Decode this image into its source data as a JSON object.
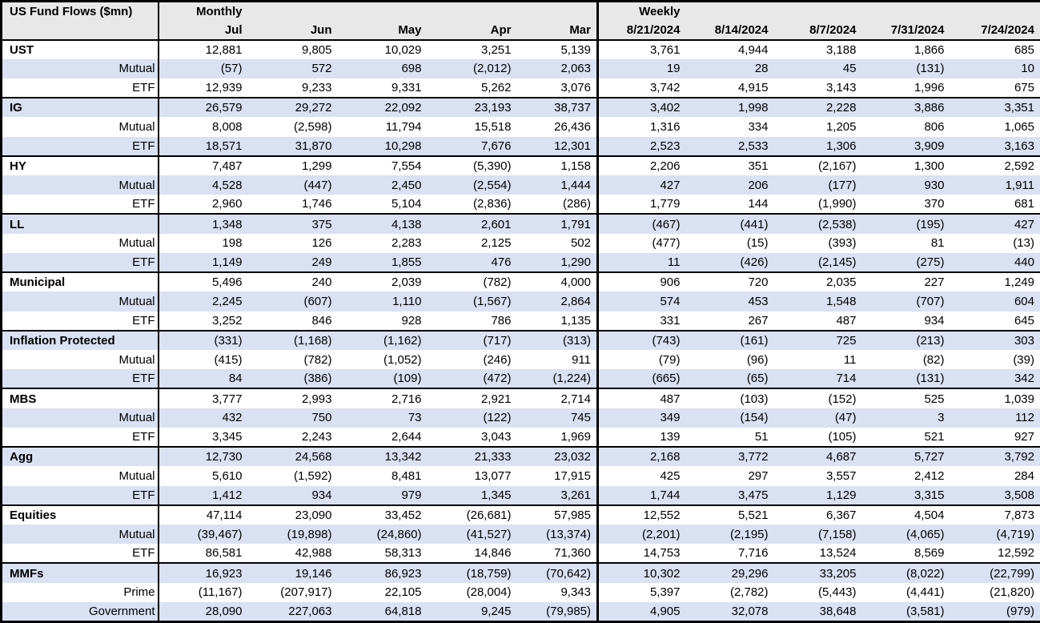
{
  "colors": {
    "alt_row_bg": "#d9e1f2",
    "header_bg": "#e8e8e8",
    "border": "#000000"
  },
  "chart_data": {
    "type": "table",
    "title": "US Fund Flows ($mn)",
    "section_headers": {
      "monthly": "Monthly",
      "weekly": "Weekly"
    },
    "columns": {
      "monthly": [
        "Jul",
        "Jun",
        "May",
        "Apr",
        "Mar"
      ],
      "weekly": [
        "8/21/2024",
        "8/14/2024",
        "8/7/2024",
        "7/31/2024",
        "7/24/2024"
      ]
    },
    "groups": [
      {
        "label": "UST",
        "monthly": [
          "12,881",
          "9,805",
          "10,029",
          "3,251",
          "5,139"
        ],
        "weekly": [
          "3,761",
          "4,944",
          "3,188",
          "1,866",
          "685"
        ],
        "subrows": [
          {
            "label": "Mutual",
            "monthly": [
              "(57)",
              "572",
              "698",
              "(2,012)",
              "2,063"
            ],
            "weekly": [
              "19",
              "28",
              "45",
              "(131)",
              "10"
            ]
          },
          {
            "label": "ETF",
            "monthly": [
              "12,939",
              "9,233",
              "9,331",
              "5,262",
              "3,076"
            ],
            "weekly": [
              "3,742",
              "4,915",
              "3,143",
              "1,996",
              "675"
            ]
          }
        ]
      },
      {
        "label": "IG",
        "monthly": [
          "26,579",
          "29,272",
          "22,092",
          "23,193",
          "38,737"
        ],
        "weekly": [
          "3,402",
          "1,998",
          "2,228",
          "3,886",
          "3,351"
        ],
        "subrows": [
          {
            "label": "Mutual",
            "monthly": [
              "8,008",
              "(2,598)",
              "11,794",
              "15,518",
              "26,436"
            ],
            "weekly": [
              "1,316",
              "334",
              "1,205",
              "806",
              "1,065"
            ]
          },
          {
            "label": "ETF",
            "monthly": [
              "18,571",
              "31,870",
              "10,298",
              "7,676",
              "12,301"
            ],
            "weekly": [
              "2,523",
              "2,533",
              "1,306",
              "3,909",
              "3,163"
            ]
          }
        ]
      },
      {
        "label": "HY",
        "monthly": [
          "7,487",
          "1,299",
          "7,554",
          "(5,390)",
          "1,158"
        ],
        "weekly": [
          "2,206",
          "351",
          "(2,167)",
          "1,300",
          "2,592"
        ],
        "subrows": [
          {
            "label": "Mutual",
            "monthly": [
              "4,528",
              "(447)",
              "2,450",
              "(2,554)",
              "1,444"
            ],
            "weekly": [
              "427",
              "206",
              "(177)",
              "930",
              "1,911"
            ]
          },
          {
            "label": "ETF",
            "monthly": [
              "2,960",
              "1,746",
              "5,104",
              "(2,836)",
              "(286)"
            ],
            "weekly": [
              "1,779",
              "144",
              "(1,990)",
              "370",
              "681"
            ]
          }
        ]
      },
      {
        "label": "LL",
        "monthly": [
          "1,348",
          "375",
          "4,138",
          "2,601",
          "1,791"
        ],
        "weekly": [
          "(467)",
          "(441)",
          "(2,538)",
          "(195)",
          "427"
        ],
        "subrows": [
          {
            "label": "Mutual",
            "monthly": [
              "198",
              "126",
              "2,283",
              "2,125",
              "502"
            ],
            "weekly": [
              "(477)",
              "(15)",
              "(393)",
              "81",
              "(13)"
            ]
          },
          {
            "label": "ETF",
            "monthly": [
              "1,149",
              "249",
              "1,855",
              "476",
              "1,290"
            ],
            "weekly": [
              "11",
              "(426)",
              "(2,145)",
              "(275)",
              "440"
            ]
          }
        ]
      },
      {
        "label": "Municipal",
        "monthly": [
          "5,496",
          "240",
          "2,039",
          "(782)",
          "4,000"
        ],
        "weekly": [
          "906",
          "720",
          "2,035",
          "227",
          "1,249"
        ],
        "subrows": [
          {
            "label": "Mutual",
            "monthly": [
              "2,245",
              "(607)",
              "1,110",
              "(1,567)",
              "2,864"
            ],
            "weekly": [
              "574",
              "453",
              "1,548",
              "(707)",
              "604"
            ]
          },
          {
            "label": "ETF",
            "monthly": [
              "3,252",
              "846",
              "928",
              "786",
              "1,135"
            ],
            "weekly": [
              "331",
              "267",
              "487",
              "934",
              "645"
            ]
          }
        ]
      },
      {
        "label": "Inflation Protected",
        "monthly": [
          "(331)",
          "(1,168)",
          "(1,162)",
          "(717)",
          "(313)"
        ],
        "weekly": [
          "(743)",
          "(161)",
          "725",
          "(213)",
          "303"
        ],
        "subrows": [
          {
            "label": "Mutual",
            "monthly": [
              "(415)",
              "(782)",
              "(1,052)",
              "(246)",
              "911"
            ],
            "weekly": [
              "(79)",
              "(96)",
              "11",
              "(82)",
              "(39)"
            ]
          },
          {
            "label": "ETF",
            "monthly": [
              "84",
              "(386)",
              "(109)",
              "(472)",
              "(1,224)"
            ],
            "weekly": [
              "(665)",
              "(65)",
              "714",
              "(131)",
              "342"
            ]
          }
        ]
      },
      {
        "label": "MBS",
        "monthly": [
          "3,777",
          "2,993",
          "2,716",
          "2,921",
          "2,714"
        ],
        "weekly": [
          "487",
          "(103)",
          "(152)",
          "525",
          "1,039"
        ],
        "subrows": [
          {
            "label": "Mutual",
            "monthly": [
              "432",
              "750",
              "73",
              "(122)",
              "745"
            ],
            "weekly": [
              "349",
              "(154)",
              "(47)",
              "3",
              "112"
            ]
          },
          {
            "label": "ETF",
            "monthly": [
              "3,345",
              "2,243",
              "2,644",
              "3,043",
              "1,969"
            ],
            "weekly": [
              "139",
              "51",
              "(105)",
              "521",
              "927"
            ]
          }
        ]
      },
      {
        "label": "Agg",
        "monthly": [
          "12,730",
          "24,568",
          "13,342",
          "21,333",
          "23,032"
        ],
        "weekly": [
          "2,168",
          "3,772",
          "4,687",
          "5,727",
          "3,792"
        ],
        "subrows": [
          {
            "label": "Mutual",
            "monthly": [
              "5,610",
              "(1,592)",
              "8,481",
              "13,077",
              "17,915"
            ],
            "weekly": [
              "425",
              "297",
              "3,557",
              "2,412",
              "284"
            ]
          },
          {
            "label": "ETF",
            "monthly": [
              "1,412",
              "934",
              "979",
              "1,345",
              "3,261"
            ],
            "weekly": [
              "1,744",
              "3,475",
              "1,129",
              "3,315",
              "3,508"
            ]
          }
        ]
      },
      {
        "label": "Equities",
        "monthly": [
          "47,114",
          "23,090",
          "33,452",
          "(26,681)",
          "57,985"
        ],
        "weekly": [
          "12,552",
          "5,521",
          "6,367",
          "4,504",
          "7,873"
        ],
        "subrows": [
          {
            "label": "Mutual",
            "monthly": [
              "(39,467)",
              "(19,898)",
              "(24,860)",
              "(41,527)",
              "(13,374)"
            ],
            "weekly": [
              "(2,201)",
              "(2,195)",
              "(7,158)",
              "(4,065)",
              "(4,719)"
            ]
          },
          {
            "label": "ETF",
            "monthly": [
              "86,581",
              "42,988",
              "58,313",
              "14,846",
              "71,360"
            ],
            "weekly": [
              "14,753",
              "7,716",
              "13,524",
              "8,569",
              "12,592"
            ]
          }
        ]
      },
      {
        "label": "MMFs",
        "monthly": [
          "16,923",
          "19,146",
          "86,923",
          "(18,759)",
          "(70,642)"
        ],
        "weekly": [
          "10,302",
          "29,296",
          "33,205",
          "(8,022)",
          "(22,799)"
        ],
        "subrows": [
          {
            "label": "Prime",
            "monthly": [
              "(11,167)",
              "(207,917)",
              "22,105",
              "(28,004)",
              "9,343"
            ],
            "weekly": [
              "5,397",
              "(2,782)",
              "(5,443)",
              "(4,441)",
              "(21,820)"
            ]
          },
          {
            "label": "Government",
            "monthly": [
              "28,090",
              "227,063",
              "64,818",
              "9,245",
              "(79,985)"
            ],
            "weekly": [
              "4,905",
              "32,078",
              "38,648",
              "(3,581)",
              "(979)"
            ]
          }
        ]
      }
    ]
  }
}
